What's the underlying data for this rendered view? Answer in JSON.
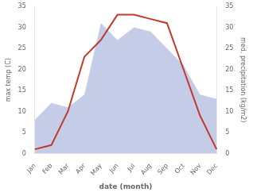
{
  "chart_data": {
    "type": "line",
    "xlabel": "date (month)",
    "ylabel": "max temp (C)",
    "y2label": "med. precipitation (kg/m2)",
    "categories": [
      "Jan",
      "Feb",
      "Mar",
      "Apr",
      "May",
      "Jun",
      "Jul",
      "Aug",
      "Sep",
      "Oct",
      "Nov",
      "Dec"
    ],
    "series": [
      {
        "type": "area",
        "axis": "y2",
        "color": "#c5cce8",
        "values": [
          8,
          12,
          11,
          14,
          31,
          27,
          30,
          29,
          25,
          21,
          14,
          13
        ]
      },
      {
        "type": "line",
        "color": "#c0392b",
        "values": [
          1,
          2,
          10,
          23,
          27,
          33,
          33,
          32,
          31,
          20,
          9,
          1
        ]
      }
    ],
    "ylim": [
      0,
      35
    ],
    "yticks": [
      0,
      5,
      10,
      15,
      20,
      25,
      30,
      35
    ],
    "y2lim": [
      0,
      35
    ],
    "y2ticks": [
      0,
      5,
      10,
      15,
      20,
      25,
      30,
      35
    ],
    "grid": false
  }
}
